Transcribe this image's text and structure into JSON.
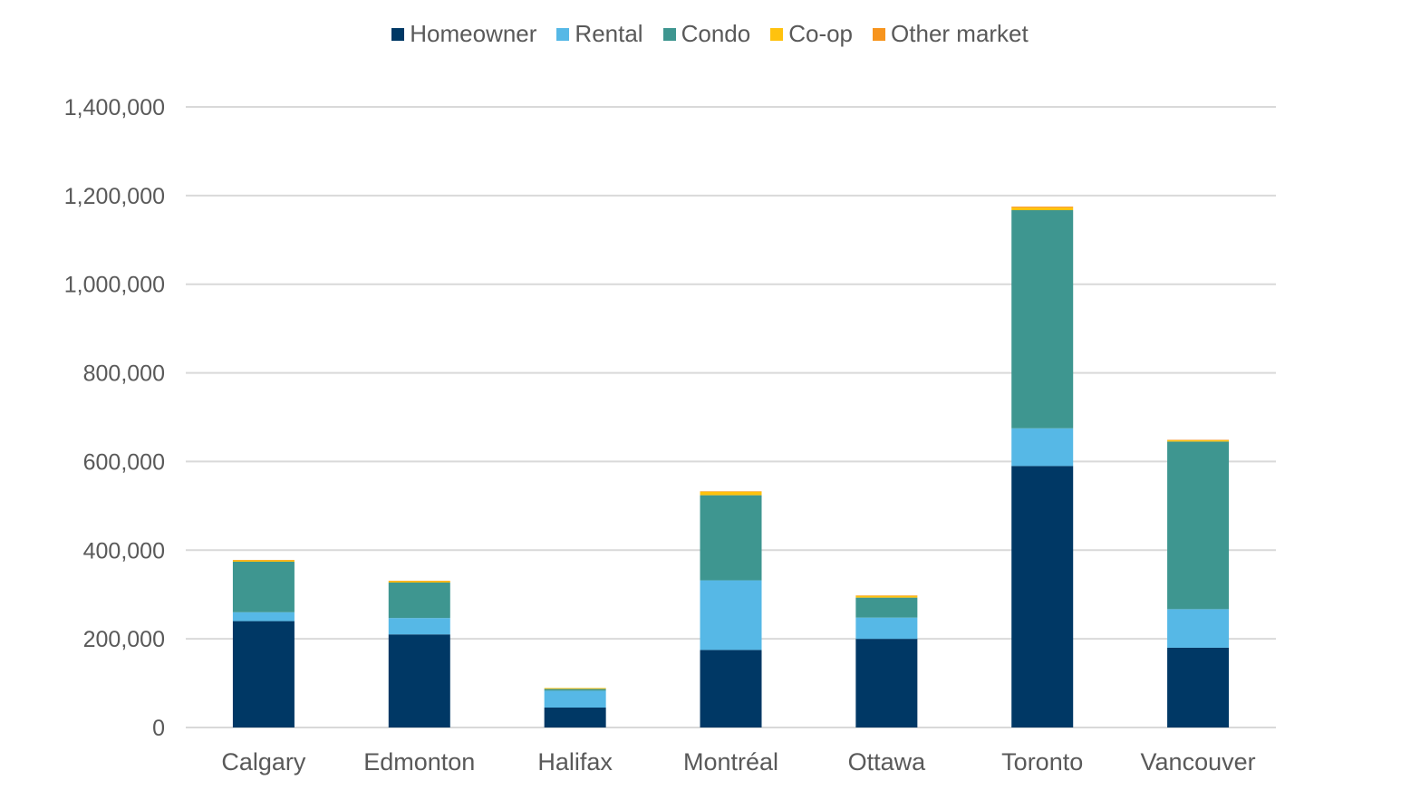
{
  "chart_data": {
    "type": "bar",
    "stacked": true,
    "categories": [
      "Calgary",
      "Edmonton",
      "Halifax",
      "Montréal",
      "Ottawa",
      "Toronto",
      "Vancouver"
    ],
    "series": [
      {
        "name": "Homeowner",
        "color": "#003865",
        "values": [
          240000,
          210000,
          45000,
          175000,
          200000,
          590000,
          180000
        ]
      },
      {
        "name": "Rental",
        "color": "#56B8E6",
        "values": [
          20000,
          37000,
          38000,
          157000,
          48000,
          85000,
          87000
        ]
      },
      {
        "name": "Condo",
        "color": "#3E9690",
        "values": [
          114000,
          80000,
          4000,
          192000,
          45000,
          492000,
          378000
        ]
      },
      {
        "name": "Co-op",
        "color": "#FFC20E",
        "values": [
          3000,
          3000,
          2000,
          8000,
          4000,
          6000,
          3000
        ]
      },
      {
        "name": "Other market",
        "color": "#F7941D",
        "values": [
          1000,
          1000,
          0,
          1000,
          1000,
          2000,
          1000
        ]
      }
    ],
    "ylim": [
      0,
      1400000
    ],
    "yticks": [
      0,
      200000,
      400000,
      600000,
      800000,
      1000000,
      1200000,
      1400000
    ],
    "ytick_labels": [
      "0",
      "200,000",
      "400,000",
      "600,000",
      "800,000",
      "1,000,000",
      "1,200,000",
      "1,400,000"
    ],
    "grid": true,
    "legend_position": "top-center"
  }
}
